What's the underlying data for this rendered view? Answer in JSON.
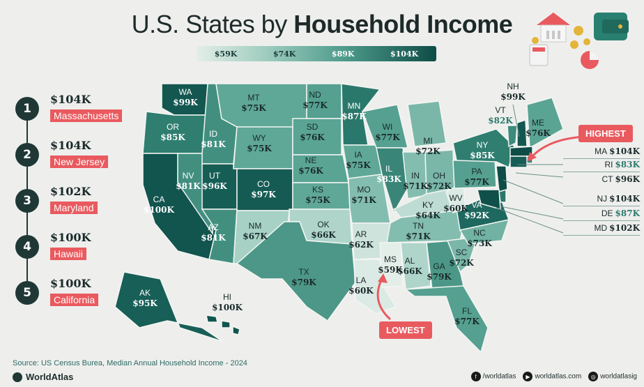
{
  "title": {
    "prefix": "U.S. States by",
    "emphasis": "Household Income"
  },
  "legend": [
    "$59K",
    "$74K",
    "$89K",
    "$104K"
  ],
  "ranking": [
    {
      "rank": "1",
      "value": "$104K",
      "state": "Massachusetts"
    },
    {
      "rank": "2",
      "value": "$104K",
      "state": "New Jersey"
    },
    {
      "rank": "3",
      "value": "$102K",
      "state": "Maryland"
    },
    {
      "rank": "4",
      "value": "$100K",
      "state": "Hawaii"
    },
    {
      "rank": "5",
      "value": "$100K",
      "state": "California"
    }
  ],
  "states": {
    "WA": {
      "abbr": "WA",
      "value": "$99K",
      "income_k": 99
    },
    "OR": {
      "abbr": "OR",
      "value": "$85K",
      "income_k": 85
    },
    "CA": {
      "abbr": "CA",
      "value": "$100K",
      "income_k": 100
    },
    "NV": {
      "abbr": "NV",
      "value": "$81K",
      "income_k": 81
    },
    "ID": {
      "abbr": "ID",
      "value": "$81K",
      "income_k": 81
    },
    "MT": {
      "abbr": "MT",
      "value": "$75K",
      "income_k": 75
    },
    "WY": {
      "abbr": "WY",
      "value": "$75K",
      "income_k": 75
    },
    "UT": {
      "abbr": "UT",
      "value": "$96K",
      "income_k": 96
    },
    "AZ": {
      "abbr": "AZ",
      "value": "$81K",
      "income_k": 81
    },
    "CO": {
      "abbr": "CO",
      "value": "$97K",
      "income_k": 97
    },
    "NM": {
      "abbr": "NM",
      "value": "$67K",
      "income_k": 67
    },
    "ND": {
      "abbr": "ND",
      "value": "$77K",
      "income_k": 77
    },
    "SD": {
      "abbr": "SD",
      "value": "$76K",
      "income_k": 76
    },
    "NE": {
      "abbr": "NE",
      "value": "$76K",
      "income_k": 76
    },
    "KS": {
      "abbr": "KS",
      "value": "$75K",
      "income_k": 75
    },
    "OK": {
      "abbr": "OK",
      "value": "$66K",
      "income_k": 66
    },
    "TX": {
      "abbr": "TX",
      "value": "$79K",
      "income_k": 79
    },
    "MN": {
      "abbr": "MN",
      "value": "$87K",
      "income_k": 87
    },
    "IA": {
      "abbr": "IA",
      "value": "$75K",
      "income_k": 75
    },
    "MO": {
      "abbr": "MO",
      "value": "$71K",
      "income_k": 71
    },
    "AR": {
      "abbr": "AR",
      "value": "$62K",
      "income_k": 62
    },
    "LA": {
      "abbr": "LA",
      "value": "$60K",
      "income_k": 60
    },
    "WI": {
      "abbr": "WI",
      "value": "$77K",
      "income_k": 77
    },
    "IL": {
      "abbr": "IL",
      "value": "$83K",
      "income_k": 83
    },
    "MI": {
      "abbr": "MI",
      "value": "$72K",
      "income_k": 72
    },
    "IN": {
      "abbr": "IN",
      "value": "$71K",
      "income_k": 71
    },
    "OH": {
      "abbr": "OH",
      "value": "$72K",
      "income_k": 72
    },
    "KY": {
      "abbr": "KY",
      "value": "$64K",
      "income_k": 64
    },
    "TN": {
      "abbr": "TN",
      "value": "$71K",
      "income_k": 71
    },
    "MS": {
      "abbr": "MS",
      "value": "$59K",
      "income_k": 59
    },
    "AL": {
      "abbr": "AL",
      "value": "$66K",
      "income_k": 66
    },
    "GA": {
      "abbr": "GA",
      "value": "$79K",
      "income_k": 79
    },
    "FL": {
      "abbr": "FL",
      "value": "$77K",
      "income_k": 77
    },
    "SC": {
      "abbr": "SC",
      "value": "$72K",
      "income_k": 72
    },
    "NC": {
      "abbr": "NC",
      "value": "$73K",
      "income_k": 73
    },
    "VA": {
      "abbr": "VA",
      "value": "$92K",
      "income_k": 92
    },
    "WV": {
      "abbr": "WV",
      "value": "$60K",
      "income_k": 60
    },
    "PA": {
      "abbr": "PA",
      "value": "$77K",
      "income_k": 77
    },
    "NY": {
      "abbr": "NY",
      "value": "$85K",
      "income_k": 85
    },
    "VT": {
      "abbr": "VT",
      "value": "$82K",
      "income_k": 82
    },
    "NH": {
      "abbr": "NH",
      "value": "$99K",
      "income_k": 99
    },
    "ME": {
      "abbr": "ME",
      "value": "$76K",
      "income_k": 76
    },
    "MA": {
      "abbr": "MA",
      "value": "$104K",
      "income_k": 104
    },
    "RI": {
      "abbr": "RI",
      "value": "$83K",
      "income_k": 83
    },
    "CT": {
      "abbr": "CT",
      "value": "$96K",
      "income_k": 96
    },
    "NJ": {
      "abbr": "NJ",
      "value": "$104K",
      "income_k": 104
    },
    "DE": {
      "abbr": "DE",
      "value": "$87K",
      "income_k": 87
    },
    "MD": {
      "abbr": "MD",
      "value": "$102K",
      "income_k": 102
    },
    "AK": {
      "abbr": "AK",
      "value": "$95K",
      "income_k": 95
    },
    "HI": {
      "abbr": "HI",
      "value": "$100K",
      "income_k": 100
    }
  },
  "callouts": {
    "highest": "HIGHEST",
    "lowest": "LOWEST"
  },
  "source": "Source: US Census Burea, Median Annual Household Income - 2024",
  "brand": "WorldAtlas",
  "social": {
    "facebook": "/worldatlas",
    "web": "worldatlas.com",
    "instagram": "worldatlasig"
  },
  "colors": {
    "low": "#e4eee9",
    "high": "#0e4c47",
    "accent": "#e95a5f"
  }
}
